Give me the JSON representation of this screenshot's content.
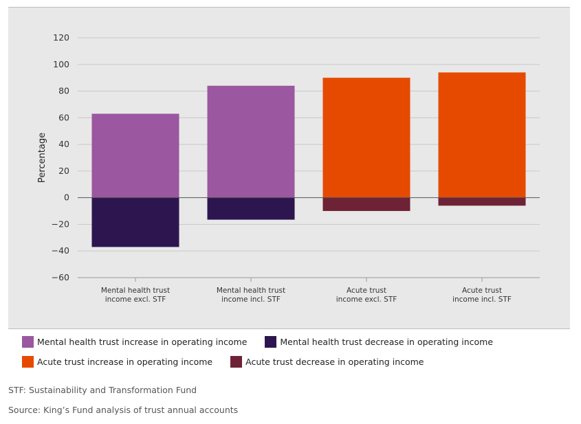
{
  "chart_data": {
    "type": "bar",
    "stacked": "diverging",
    "title": "",
    "xlabel": "",
    "ylabel": "Percentage",
    "ylim": [
      -60,
      120
    ],
    "yticks": [
      120,
      100,
      80,
      60,
      40,
      20,
      0,
      -20,
      -40,
      -60
    ],
    "ytick_labels": [
      "120",
      "100",
      "80",
      "60",
      "40",
      "20",
      "0",
      "−20",
      "−40",
      "−60"
    ],
    "grid": true,
    "categories": [
      [
        "Mental health trust",
        "income excl. STF"
      ],
      [
        "Mental health trust",
        "income incl. STF"
      ],
      [
        "Acute trust",
        "income excl. STF"
      ],
      [
        "Acute trust",
        "income incl. STF"
      ]
    ],
    "series": [
      {
        "name": "Mental health trust increase in operating income",
        "color": "#9b579f",
        "values": [
          63,
          84,
          null,
          null
        ]
      },
      {
        "name": "Mental health trust decrease in operating income",
        "color": "#2d1650",
        "values": [
          -37,
          -16.5,
          null,
          null
        ]
      },
      {
        "name": "Acute trust increase in operating income",
        "color": "#e64a00",
        "values": [
          null,
          null,
          90,
          94
        ]
      },
      {
        "name": "Acute trust decrease in operating income",
        "color": "#6e2236",
        "values": [
          null,
          null,
          -10,
          -6
        ]
      }
    ],
    "legend_position": "bottom"
  },
  "notes": {
    "stf": "STF: Sustainability and Transformation Fund",
    "source": "Source: King’s Fund analysis of trust annual accounts"
  }
}
